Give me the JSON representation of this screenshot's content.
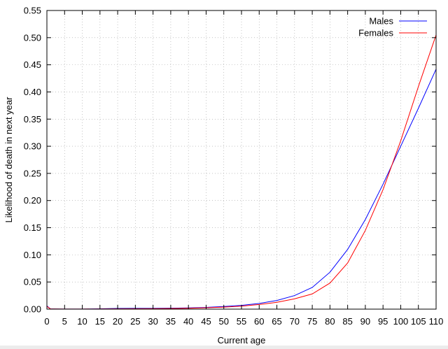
{
  "chart_data": {
    "type": "line",
    "title": "",
    "xlabel": "Current age",
    "ylabel": "Likelihood of death in next year",
    "xlim": [
      0,
      110
    ],
    "ylim": [
      0,
      0.55
    ],
    "grid": true,
    "legend_position": "top-right",
    "x_ticks": [
      "0",
      "5",
      "10",
      "15",
      "20",
      "25",
      "30",
      "35",
      "40",
      "45",
      "50",
      "55",
      "60",
      "65",
      "70",
      "75",
      "80",
      "85",
      "90",
      "95",
      "100",
      "105",
      "110"
    ],
    "y_ticks": [
      "0.00",
      "0.05",
      "0.10",
      "0.15",
      "0.20",
      "0.25",
      "0.30",
      "0.35",
      "0.40",
      "0.45",
      "0.50",
      "0.55"
    ],
    "series": [
      {
        "name": "Males",
        "color": "#0000ff",
        "x": [
          0,
          1,
          2,
          5,
          10,
          15,
          20,
          25,
          30,
          35,
          40,
          45,
          50,
          55,
          60,
          65,
          70,
          75,
          80,
          85,
          90,
          95,
          100,
          105,
          110
        ],
        "y": [
          0.006,
          0.0005,
          0.0004,
          0.0002,
          0.0002,
          0.0006,
          0.0013,
          0.0014,
          0.0015,
          0.0017,
          0.0022,
          0.0032,
          0.0048,
          0.007,
          0.0105,
          0.016,
          0.025,
          0.04,
          0.068,
          0.11,
          0.165,
          0.23,
          0.3,
          0.37,
          0.442
        ]
      },
      {
        "name": "Females",
        "color": "#ff0000",
        "x": [
          0,
          1,
          2,
          5,
          10,
          15,
          20,
          25,
          30,
          35,
          40,
          45,
          50,
          55,
          60,
          65,
          70,
          75,
          80,
          85,
          90,
          95,
          100,
          105,
          110
        ],
        "y": [
          0.005,
          0.0004,
          0.0003,
          0.0002,
          0.0002,
          0.0003,
          0.0005,
          0.0006,
          0.0008,
          0.0011,
          0.0016,
          0.0025,
          0.0037,
          0.0055,
          0.0085,
          0.0125,
          0.019,
          0.028,
          0.048,
          0.085,
          0.145,
          0.22,
          0.31,
          0.41,
          0.505
        ]
      }
    ]
  }
}
